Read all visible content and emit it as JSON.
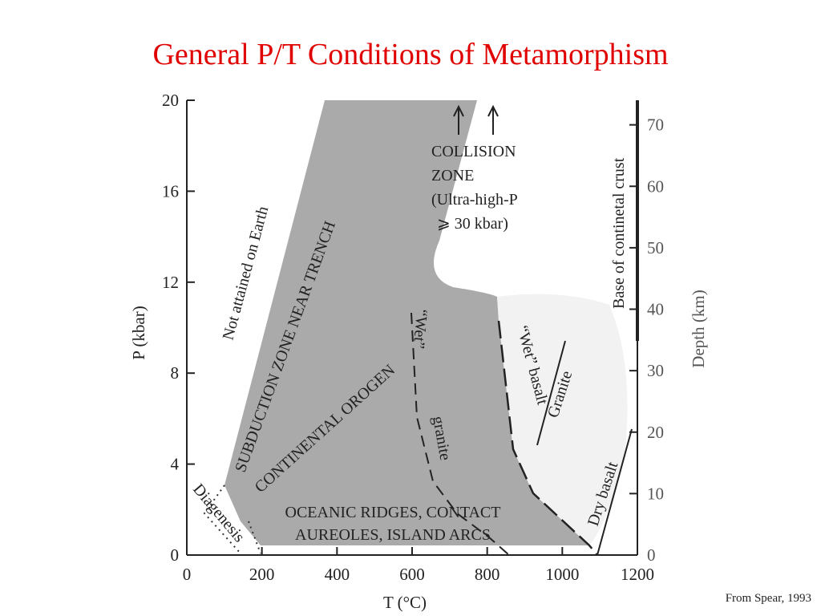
{
  "title": "General P/T Conditions of Metamorphism",
  "source": "From Spear, 1993",
  "x_axis": {
    "label": "T (°C)",
    "lim": [
      0,
      1200
    ],
    "ticks": [
      0,
      200,
      400,
      600,
      800,
      1000,
      1200
    ]
  },
  "y_axis": {
    "label": "P (kbar)",
    "lim": [
      0,
      20
    ],
    "ticks": [
      0,
      4,
      8,
      12,
      16,
      20
    ]
  },
  "y2_axis": {
    "label": "Depth (km)",
    "lim": [
      0,
      74
    ],
    "ticks": [
      0,
      10,
      20,
      30,
      40,
      50,
      60,
      70
    ]
  },
  "regions": {
    "not_attained": "Not attained on Earth",
    "subduction": "SUBDUCTION ZONE NEAR TRENCH",
    "orogen": "CONTINENTAL OROGEN",
    "collision": [
      "COLLISION",
      "ZONE",
      "(Ultra-high-P",
      "⩾ 30 kbar)"
    ],
    "ridges": [
      "OCEANIC RIDGES, CONTACT",
      "AUREOLES, ISLAND ARCS"
    ],
    "diagenesis": "Diagenesis"
  },
  "curves": {
    "wet_granite": [
      "“Wet”",
      "granite"
    ],
    "wet_basalt": "“Wet” basalt",
    "granite": "Granite",
    "dry_basalt": "Dry basalt",
    "crust": "Base of continetal crust"
  }
}
